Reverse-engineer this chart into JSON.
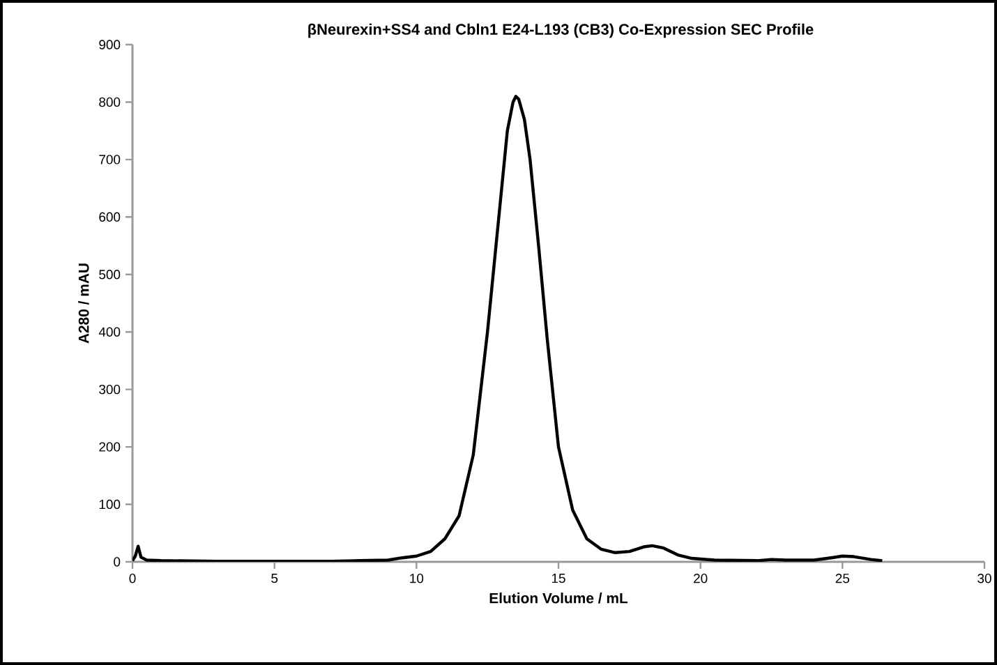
{
  "chart_data": {
    "type": "line",
    "title": "βNeurexin+SS4 and Cbln1 E24-L193 (CB3) Co-Expression SEC Profile",
    "xlabel": "Elution Volume / mL",
    "ylabel": "A280 / mAU",
    "x": [
      0,
      0.1,
      0.2,
      0.3,
      0.5,
      1,
      3,
      5,
      7,
      8,
      9,
      9.5,
      10,
      10.5,
      11,
      11.5,
      12,
      12.5,
      13,
      13.2,
      13.4,
      13.5,
      13.6,
      13.8,
      14,
      14.3,
      14.6,
      15,
      15.5,
      16,
      16.5,
      17,
      17.5,
      18,
      18.3,
      18.7,
      19.2,
      19.7,
      20.5,
      22,
      22.5,
      23,
      24,
      24.6,
      25,
      25.4,
      26,
      26.4
    ],
    "series": [
      {
        "color": "#000000",
        "values": [
          2,
          10,
          27,
          8,
          3,
          2,
          1,
          1,
          1,
          2,
          3,
          7,
          10,
          18,
          40,
          80,
          186,
          400,
          650,
          750,
          800,
          810,
          805,
          770,
          700,
          550,
          390,
          200,
          90,
          40,
          22,
          16,
          18,
          26,
          28,
          24,
          12,
          6,
          3,
          2,
          4,
          3,
          3,
          7,
          10,
          9,
          4,
          2
        ]
      }
    ],
    "xlim": [
      0,
      30
    ],
    "ylim": [
      0,
      900
    ],
    "xticks": [
      0,
      5,
      10,
      15,
      20,
      25,
      30
    ],
    "yticks": [
      0,
      100,
      200,
      300,
      400,
      500,
      600,
      700,
      800,
      900
    ],
    "grid": false,
    "marker": "none",
    "line_style": "solid"
  }
}
